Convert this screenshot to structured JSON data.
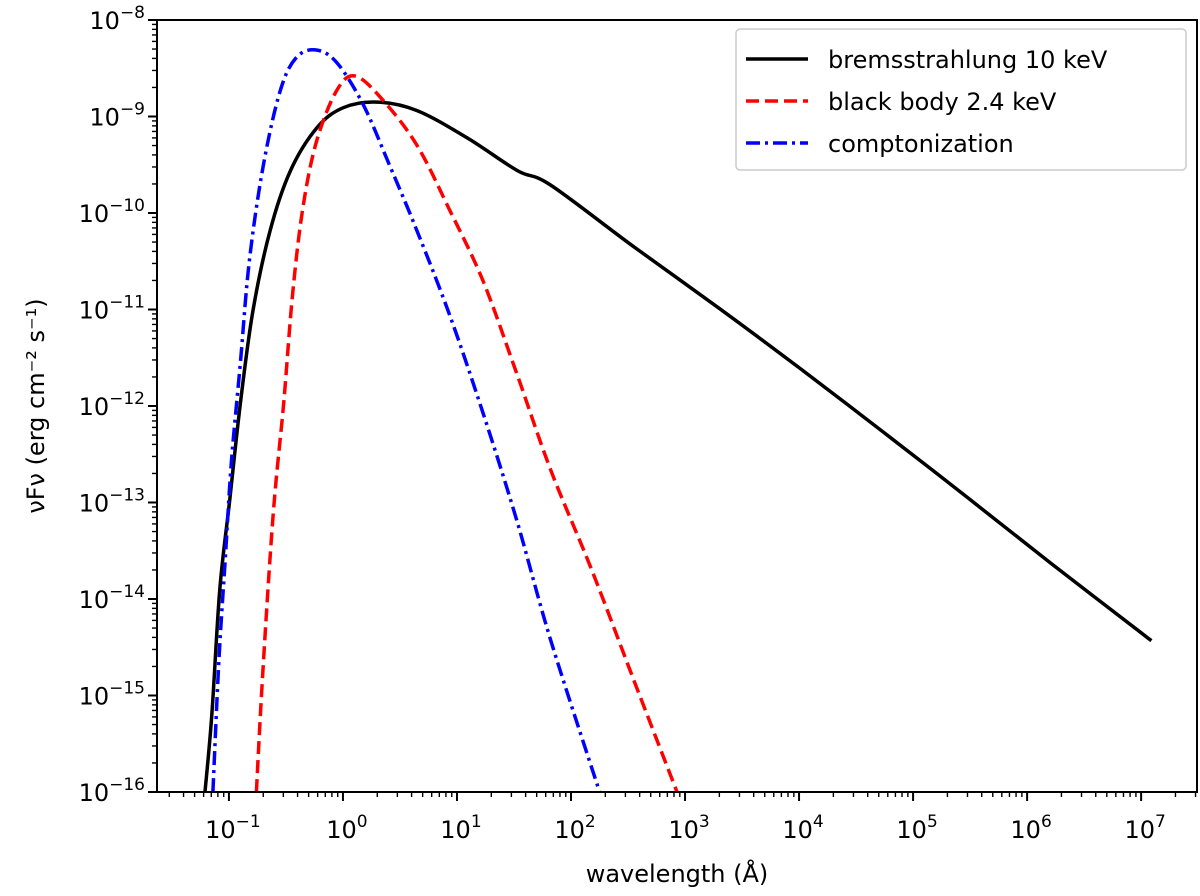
{
  "chart_data": {
    "type": "line",
    "title": "",
    "xlabel": "wavelength (Å)",
    "ylabel": "νFν (erg cm⁻² s⁻¹)",
    "xscale": "log",
    "yscale": "log",
    "xlim": [
      0.0234,
      30900000
    ],
    "ylim": [
      1e-16,
      1e-08
    ],
    "grid": false,
    "legend_position": "top-right",
    "x_ticks": [
      {
        "value": 0.1,
        "base": "10",
        "exp": "−1"
      },
      {
        "value": 1,
        "base": "10",
        "exp": "0"
      },
      {
        "value": 10,
        "base": "10",
        "exp": "1"
      },
      {
        "value": 100,
        "base": "10",
        "exp": "2"
      },
      {
        "value": 1000,
        "base": "10",
        "exp": "3"
      },
      {
        "value": 10000,
        "base": "10",
        "exp": "4"
      },
      {
        "value": 100000,
        "base": "10",
        "exp": "5"
      },
      {
        "value": 1000000,
        "base": "10",
        "exp": "6"
      },
      {
        "value": 10000000,
        "base": "10",
        "exp": "7"
      }
    ],
    "y_ticks": [
      {
        "value": 1e-08,
        "base": "10",
        "exp": "−8"
      },
      {
        "value": 1e-09,
        "base": "10",
        "exp": "−9"
      },
      {
        "value": 1e-10,
        "base": "10",
        "exp": "−10"
      },
      {
        "value": 1e-11,
        "base": "10",
        "exp": "−11"
      },
      {
        "value": 1e-12,
        "base": "10",
        "exp": "−12"
      },
      {
        "value": 1e-13,
        "base": "10",
        "exp": "−13"
      },
      {
        "value": 1e-14,
        "base": "10",
        "exp": "−14"
      },
      {
        "value": 1e-15,
        "base": "10",
        "exp": "−15"
      },
      {
        "value": 1e-16,
        "base": "10",
        "exp": "−16"
      }
    ],
    "series": [
      {
        "name": "bremsstrahlung 10 keV",
        "color": "#000000",
        "style": "solid",
        "x": [
          0.0617,
          0.0708,
          0.0832,
          0.102,
          0.126,
          0.162,
          0.229,
          0.347,
          0.589,
          1.0,
          2.0,
          4.47,
          12.3,
          33.9,
          66.1,
          355,
          1905,
          10200,
          56200,
          302000,
          1620000,
          12300000
        ],
        "y": [
          1e-16,
          6.3e-16,
          1.26e-14,
          1.1e-13,
          1.07e-12,
          9.5e-12,
          6.5e-11,
          2.75e-10,
          7.6e-10,
          1.23e-09,
          1.41e-09,
          1.15e-09,
          6e-10,
          2.75e-10,
          1.95e-10,
          4.47e-11,
          1.07e-11,
          2.45e-12,
          5.25e-13,
          1.12e-13,
          2.34e-14,
          3.7e-15
        ]
      },
      {
        "name": "black body 2.4 keV",
        "color": "#ff0000",
        "style": "dashed",
        "x": [
          0.174,
          0.2,
          0.245,
          0.302,
          0.363,
          0.447,
          0.589,
          0.881,
          1.28,
          2.24,
          4.47,
          8.71,
          17.0,
          33.1,
          66.1,
          151,
          355,
          851
        ],
        "y": [
          1e-16,
          2.1e-15,
          7.8e-14,
          1.07e-12,
          1.51e-11,
          1.17e-10,
          5.6e-10,
          1.86e-09,
          2.63e-09,
          1.48e-09,
          5e-10,
          1.05e-10,
          1.95e-11,
          2.24e-12,
          2.2e-13,
          2.04e-14,
          1.45e-15,
          1e-16
        ]
      },
      {
        "name": "comptonization",
        "color": "#0000ff",
        "style": "dashdot",
        "x": [
          0.0724,
          0.0813,
          0.0923,
          0.105,
          0.126,
          0.151,
          0.2,
          0.282,
          0.389,
          0.575,
          0.881,
          1.51,
          2.57,
          4.47,
          8.71,
          17.0,
          33.1,
          66.1,
          178
        ],
        "y": [
          1e-16,
          2.1e-15,
          2.34e-14,
          2.57e-13,
          2.82e-12,
          3.16e-11,
          3.1e-10,
          1.86e-09,
          4.07e-09,
          4.9e-09,
          3.63e-09,
          1.32e-09,
          3.1e-10,
          6.5e-11,
          8.5e-12,
          8.3e-13,
          6.8e-14,
          3.8e-15,
          1e-16
        ]
      }
    ]
  }
}
